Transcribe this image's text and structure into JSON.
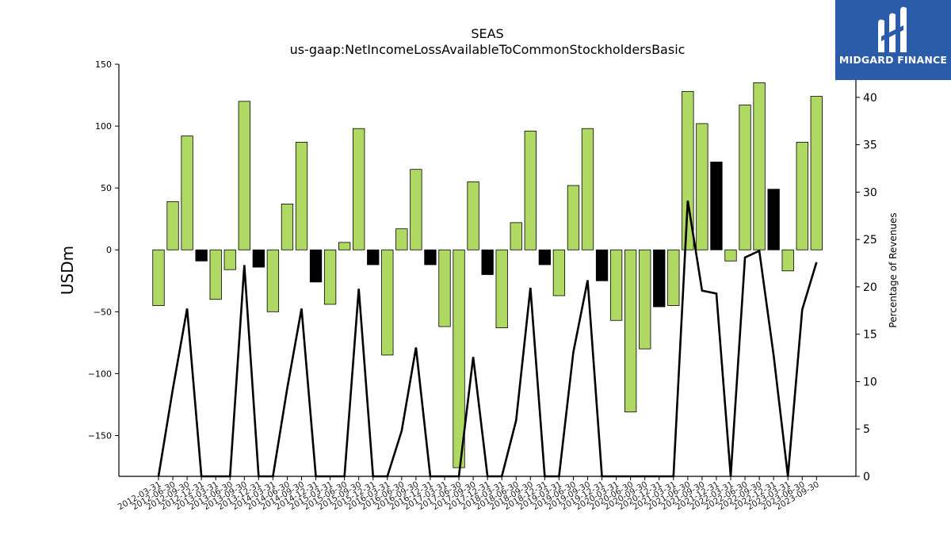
{
  "brand": {
    "name": "MIDGARD FINANCE",
    "logo_color": "#2a5caa"
  },
  "chart_data": {
    "type": "bar",
    "title": "SEAS",
    "subtitle": "us-gaap:NetIncomeLossAvailableToCommonStockholdersBasic",
    "ylabel": "USDm",
    "y2label": "Percentage of Revenues",
    "ylim": [
      -183,
      150
    ],
    "y2lim": [
      0,
      43.5
    ],
    "yticks": [
      -150,
      -100,
      -50,
      0,
      50,
      100,
      150
    ],
    "y2ticks": [
      0,
      5,
      10,
      15,
      20,
      25,
      30,
      35,
      40
    ],
    "colors": {
      "positive_bar": "#b0d964",
      "highlight_bar": "#000000",
      "line": "#000000"
    },
    "categories": [
      "2012-03-31",
      "2012-06-30",
      "2012-09-30",
      "2012-12-31",
      "2013-03-31",
      "2013-06-30",
      "2013-09-30",
      "2013-12-31",
      "2014-03-31",
      "2014-06-30",
      "2014-09-30",
      "2014-12-31",
      "2015-03-31",
      "2015-06-30",
      "2015-09-30",
      "2015-12-31",
      "2016-03-31",
      "2016-06-30",
      "2016-09-30",
      "2016-12-31",
      "2017-03-31",
      "2017-06-30",
      "2017-09-30",
      "2017-12-31",
      "2018-03-31",
      "2018-06-30",
      "2018-09-30",
      "2018-12-31",
      "2019-03-31",
      "2019-06-30",
      "2019-09-30",
      "2019-12-31",
      "2020-03-31",
      "2020-06-30",
      "2020-09-30",
      "2020-12-31",
      "2021-03-31",
      "2021-06-30",
      "2021-09-30",
      "2021-12-31",
      "2022-03-31",
      "2022-06-30",
      "2022-09-30",
      "2022-12-31",
      "2023-03-31",
      "2023-06-30",
      "2023-09-30"
    ],
    "series": [
      {
        "values": [
          -45,
          39,
          92,
          -9,
          -40,
          -16,
          120,
          -14,
          -50,
          37,
          87,
          -26,
          -44,
          6,
          98,
          -12,
          -85,
          17,
          65,
          -12,
          -62,
          -176,
          55,
          -20,
          -63,
          22,
          96,
          -12,
          -37,
          52,
          98,
          -25,
          -57,
          -131,
          -80,
          -46,
          -45,
          128,
          102,
          71,
          -9,
          117,
          135,
          49,
          -17,
          87,
          124
        ],
        "highlight": [
          false,
          false,
          false,
          true,
          false,
          false,
          false,
          true,
          false,
          false,
          false,
          true,
          false,
          false,
          false,
          true,
          false,
          false,
          false,
          true,
          false,
          false,
          false,
          true,
          false,
          false,
          false,
          true,
          false,
          false,
          false,
          true,
          false,
          false,
          false,
          true,
          false,
          false,
          false,
          true,
          false,
          false,
          false,
          true,
          false,
          false,
          false
        ]
      },
      {
        "axis": "right",
        "type": "line",
        "values": [
          0,
          9.2,
          17.7,
          0,
          0,
          0,
          22.3,
          0,
          0,
          9.3,
          17.7,
          0,
          0,
          0,
          19.8,
          0,
          0,
          4.8,
          13.6,
          0,
          0,
          0,
          12.6,
          0,
          0,
          5.9,
          19.9,
          0,
          0,
          13.1,
          20.7,
          0,
          0,
          0,
          0,
          0,
          0,
          29.1,
          19.6,
          19.3,
          0,
          23.1,
          23.8,
          12.8,
          0,
          17.6,
          22.6
        ]
      }
    ]
  }
}
